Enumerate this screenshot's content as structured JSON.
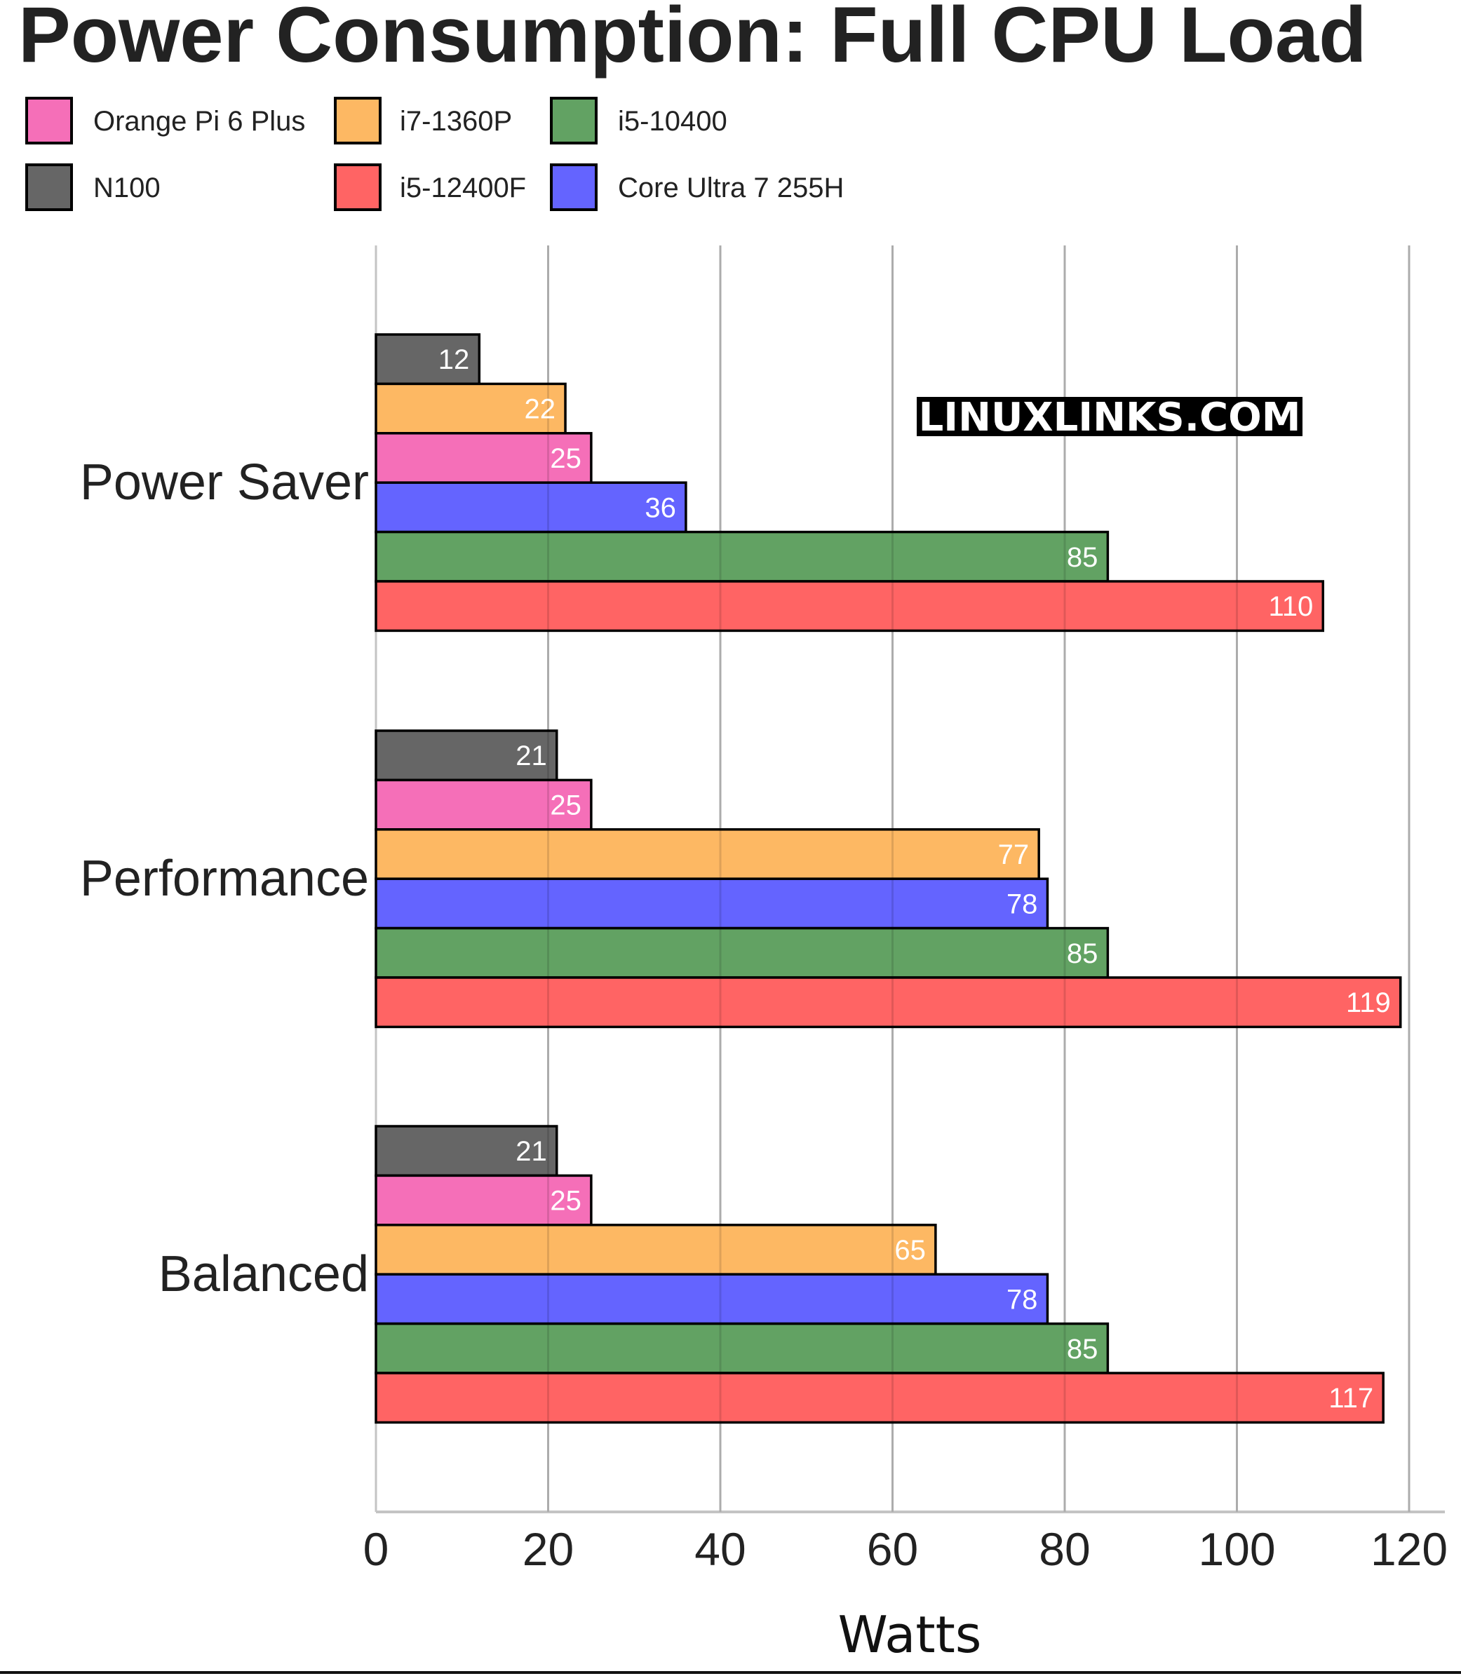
{
  "chart_data": {
    "type": "bar",
    "orientation": "horizontal",
    "title": "Power Consumption: Full CPU Load",
    "xlabel": "Watts",
    "ylabel": "",
    "xlim": [
      0,
      120
    ],
    "xticks": [
      0,
      20,
      40,
      60,
      80,
      100,
      120
    ],
    "grid": true,
    "legend_position": "top-left",
    "watermark": "LINUXLINKS.COM",
    "legend": [
      {
        "name": "Orange Pi 6 Plus",
        "color": "#f56fb8"
      },
      {
        "name": "i7-1360P",
        "color": "#fdb863"
      },
      {
        "name": "i5-10400",
        "color": "#62a263"
      },
      {
        "name": "N100",
        "color": "#666666"
      },
      {
        "name": "i5-12400F",
        "color": "#ff6464"
      },
      {
        "name": "Core Ultra 7 255H",
        "color": "#6464ff"
      }
    ],
    "categories": [
      "Power Saver",
      "Performance",
      "Balanced"
    ],
    "groups": [
      {
        "category": "Power Saver",
        "bars": [
          {
            "series": "N100",
            "value": 12
          },
          {
            "series": "i7-1360P",
            "value": 22
          },
          {
            "series": "Orange Pi 6 Plus",
            "value": 25
          },
          {
            "series": "Core Ultra 7 255H",
            "value": 36
          },
          {
            "series": "i5-10400",
            "value": 85
          },
          {
            "series": "i5-12400F",
            "value": 110
          }
        ]
      },
      {
        "category": "Performance",
        "bars": [
          {
            "series": "N100",
            "value": 21
          },
          {
            "series": "Orange Pi 6 Plus",
            "value": 25
          },
          {
            "series": "i7-1360P",
            "value": 77
          },
          {
            "series": "Core Ultra 7 255H",
            "value": 78
          },
          {
            "series": "i5-10400",
            "value": 85
          },
          {
            "series": "i5-12400F",
            "value": 119
          }
        ]
      },
      {
        "category": "Balanced",
        "bars": [
          {
            "series": "N100",
            "value": 21
          },
          {
            "series": "Orange Pi 6 Plus",
            "value": 25
          },
          {
            "series": "i7-1360P",
            "value": 65
          },
          {
            "series": "Core Ultra 7 255H",
            "value": 78
          },
          {
            "series": "i5-10400",
            "value": 85
          },
          {
            "series": "i5-12400F",
            "value": 117
          }
        ]
      }
    ]
  }
}
